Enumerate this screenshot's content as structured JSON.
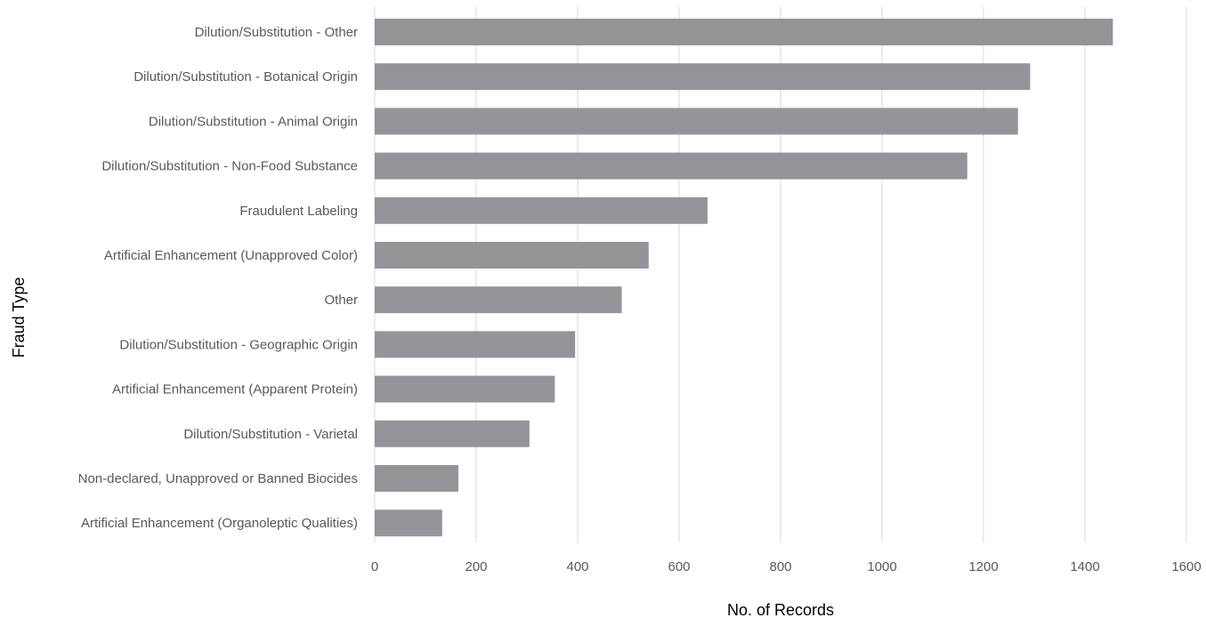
{
  "chart_data": {
    "type": "bar",
    "orientation": "horizontal",
    "title": "",
    "xlabel": "No. of Records",
    "ylabel": "Fraud Type",
    "xlim": [
      0,
      1600
    ],
    "xticks": [
      "0",
      "200",
      "400",
      "600",
      "800",
      "1000",
      "1200",
      "1400",
      "1600"
    ],
    "grid": true,
    "legend": "none",
    "categories": [
      "Dilution/Substitution - Other",
      "Dilution/Substitution - Botanical Origin",
      "Dilution/Substitution - Animal Origin",
      "Dilution/Substitution - Non-Food Substance",
      "Fraudulent Labeling",
      "Artificial Enhancement (Unapproved Color)",
      "Other",
      "Dilution/Substitution - Geographic Origin",
      "Artificial Enhancement (Apparent Protein)",
      "Dilution/Substitution - Varietal",
      "Non-declared, Unapproved or Banned Biocides",
      "Artificial Enhancement (Organoleptic Qualities)"
    ],
    "values": [
      1455,
      1292,
      1268,
      1168,
      656,
      540,
      487,
      395,
      355,
      305,
      165,
      133
    ],
    "colors": {
      "bar": "#939598",
      "grid": "#d9d9d9",
      "tick_text": "#595959",
      "axis_title": "#000000"
    }
  }
}
